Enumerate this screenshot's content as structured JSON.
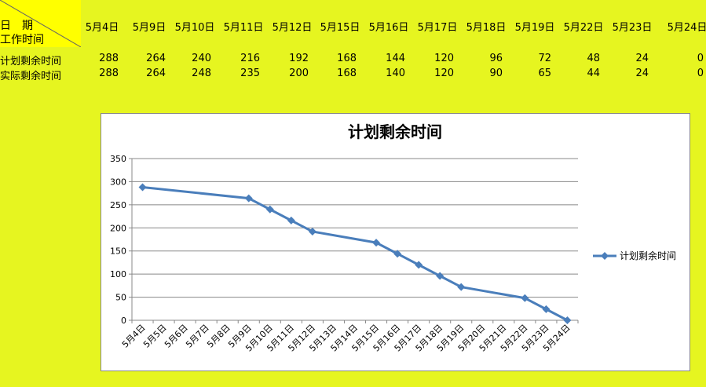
{
  "table": {
    "corner_top": "日　期",
    "corner_bottom": "工作时间",
    "columns": [
      "5月4日",
      "5月9日",
      "5月10日",
      "5月11日",
      "5月12日",
      "5月15日",
      "5月16日",
      "5月17日",
      "5月18日",
      "5月19日",
      "5月22日",
      "5月23日",
      "5月24日"
    ],
    "rows": [
      {
        "label": "计划剩余时间",
        "values": [
          288,
          264,
          240,
          216,
          192,
          168,
          144,
          120,
          96,
          72,
          48,
          24,
          0
        ]
      },
      {
        "label": "实际剩余时间",
        "values": [
          288,
          264,
          248,
          235,
          200,
          168,
          140,
          120,
          90,
          65,
          44,
          24,
          0
        ]
      }
    ]
  },
  "chart_data": {
    "type": "line",
    "title": "计划剩余时间",
    "x": [
      "5月4日",
      "5月9日",
      "5月10日",
      "5月11日",
      "5月12日",
      "5月15日",
      "5月16日",
      "5月17日",
      "5月18日",
      "5月19日",
      "5月22日",
      "5月23日",
      "5月24日"
    ],
    "xticks": [
      "5月4日",
      "5月5日",
      "5月6日",
      "5月7日",
      "5月8日",
      "5月9日",
      "5月10日",
      "5月11日",
      "5月12日",
      "5月13日",
      "5月14日",
      "5月15日",
      "5月16日",
      "5月17日",
      "5月18日",
      "5月19日",
      "5月20日",
      "5月21日",
      "5月22日",
      "5月23日",
      "5月24日"
    ],
    "series": [
      {
        "name": "计划剩余时间",
        "color": "#4a7ebb",
        "values": [
          288,
          264,
          240,
          216,
          192,
          168,
          144,
          120,
          96,
          72,
          48,
          24,
          0
        ]
      }
    ],
    "ylim": [
      0,
      350
    ],
    "yticks": [
      0,
      50,
      100,
      150,
      200,
      250,
      300,
      350
    ],
    "grid": true,
    "legend": "right"
  }
}
